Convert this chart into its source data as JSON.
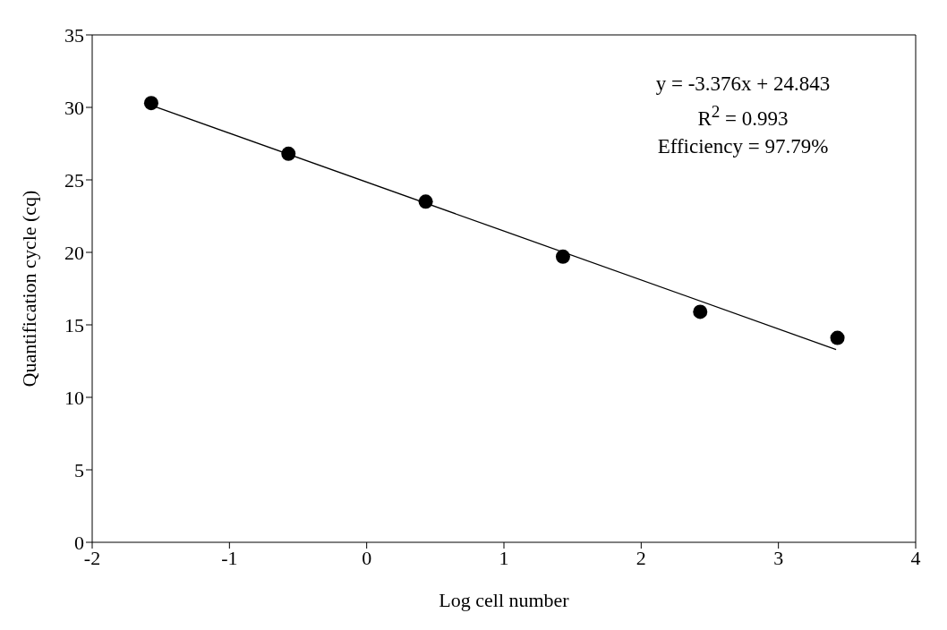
{
  "chart_data": {
    "type": "scatter",
    "xlabel": "Log cell number",
    "ylabel": "Quantification cycle (cq)",
    "xlim": [
      -2,
      4
    ],
    "xticks": [
      -2,
      -1,
      0,
      1,
      2,
      3,
      4
    ],
    "ylim": [
      0,
      35
    ],
    "yticks": [
      0,
      5,
      10,
      15,
      20,
      25,
      30,
      35
    ],
    "x": [
      -1.57,
      -0.57,
      0.43,
      1.43,
      2.43,
      3.43
    ],
    "series": [
      {
        "color": "#000000",
        "values": [
          30.3,
          26.8,
          23.5,
          19.7,
          15.9,
          14.1
        ],
        "marker": "circle"
      },
      {
        "type": "line",
        "color": "#000000",
        "x": [
          -1.58,
          3.42
        ],
        "values": [
          30.18,
          13.3
        ],
        "marker": "none",
        "line_style": "solid"
      }
    ],
    "annotations": [
      "y = -3.376x + 24.843",
      "R$^{2}$ = 0.993",
      "Efficiency = 97.79%"
    ],
    "grid": false,
    "legend": false
  }
}
